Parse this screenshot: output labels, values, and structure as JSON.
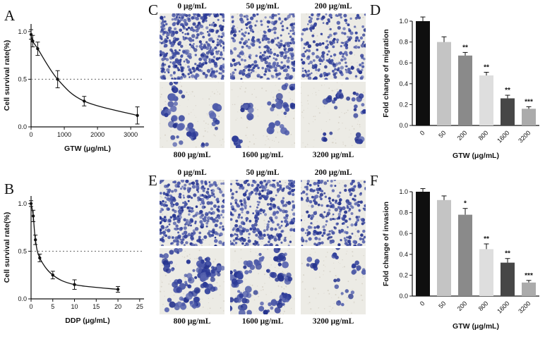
{
  "panels": {
    "A": {
      "label": "A"
    },
    "B": {
      "label": "B"
    },
    "C": {
      "label": "C"
    },
    "D": {
      "label": "D"
    },
    "E": {
      "label": "E"
    },
    "F": {
      "label": "F"
    }
  },
  "chart_data": [
    {
      "id": "A",
      "type": "line",
      "title": "",
      "xlabel": "GTW (μg/mL)",
      "ylabel": "Cell survival rate(%)",
      "xlim": [
        0,
        3400
      ],
      "ylim": [
        0,
        1.08
      ],
      "xticks": [
        0,
        1000,
        2000,
        3000
      ],
      "yticks": [
        0.0,
        0.5,
        1.0
      ],
      "dashed_y": 0.5,
      "x": [
        0,
        50,
        200,
        800,
        1600,
        3200
      ],
      "y": [
        0.97,
        0.9,
        0.82,
        0.5,
        0.27,
        0.12
      ],
      "yerr": [
        0.05,
        0.06,
        0.07,
        0.09,
        0.05,
        0.09
      ],
      "grid": false
    },
    {
      "id": "B",
      "type": "line",
      "title": "",
      "xlabel": "DDP (μg/mL)",
      "ylabel": "Cell survival rate(%)",
      "xlim": [
        0,
        26
      ],
      "ylim": [
        0,
        1.08
      ],
      "xticks": [
        0,
        5,
        10,
        15,
        20,
        25
      ],
      "yticks": [
        0.0,
        0.5,
        1.0
      ],
      "dashed_y": 0.5,
      "x": [
        0,
        0.5,
        1,
        2,
        5,
        10,
        20
      ],
      "y": [
        1.0,
        0.87,
        0.62,
        0.43,
        0.25,
        0.15,
        0.1
      ],
      "yerr": [
        0.03,
        0.06,
        0.05,
        0.04,
        0.04,
        0.05,
        0.03
      ],
      "grid": false
    },
    {
      "id": "D",
      "type": "bar",
      "title": "",
      "xlabel": "GTW (μg/mL)",
      "ylabel": "Fold change of migration",
      "ylim": [
        0,
        1.0
      ],
      "yticks": [
        0.0,
        0.2,
        0.4,
        0.6,
        0.8,
        1.0
      ],
      "categories": [
        "0",
        "50",
        "200",
        "800",
        "1600",
        "3200"
      ],
      "values": [
        1.0,
        0.8,
        0.67,
        0.48,
        0.26,
        0.16
      ],
      "errors": [
        0.04,
        0.05,
        0.03,
        0.03,
        0.03,
        0.02
      ],
      "sig": [
        "",
        "",
        "**",
        "**",
        "**",
        "***"
      ],
      "colors": [
        "#0f0f0f",
        "#c4c4c4",
        "#8a8a8a",
        "#dedede",
        "#474747",
        "#ababab"
      ],
      "grid": false,
      "legend": "none"
    },
    {
      "id": "F",
      "type": "bar",
      "title": "",
      "xlabel": "GTW (μg/mL)",
      "ylabel": "Fold change of invasion",
      "ylim": [
        0,
        1.0
      ],
      "yticks": [
        0.0,
        0.2,
        0.4,
        0.6,
        0.8,
        1.0
      ],
      "categories": [
        "0",
        "50",
        "200",
        "800",
        "1600",
        "3200"
      ],
      "values": [
        1.0,
        0.92,
        0.78,
        0.45,
        0.32,
        0.13
      ],
      "errors": [
        0.03,
        0.04,
        0.06,
        0.05,
        0.04,
        0.02
      ],
      "sig": [
        "",
        "",
        "*",
        "**",
        "**",
        "***"
      ],
      "colors": [
        "#0f0f0f",
        "#c4c4c4",
        "#8a8a8a",
        "#dedede",
        "#474747",
        "#ababab"
      ],
      "grid": false,
      "legend": "none"
    }
  ],
  "micrographs": {
    "C": {
      "panel": "C",
      "assay": "migration",
      "images": [
        {
          "label": "0 μg/mL",
          "dots": 400,
          "min_r": 1.3,
          "max_r": 2.8,
          "clumped": false
        },
        {
          "label": "50 μg/mL",
          "dots": 300,
          "min_r": 1.3,
          "max_r": 2.8,
          "clumped": false
        },
        {
          "label": "200 μg/mL",
          "dots": 230,
          "min_r": 1.3,
          "max_r": 2.8,
          "clumped": false
        },
        {
          "label": "800 μg/mL",
          "dots": 60,
          "min_r": 2.2,
          "max_r": 5.5,
          "clumped": true
        },
        {
          "label": "1600 μg/mL",
          "dots": 50,
          "min_r": 2.2,
          "max_r": 5.5,
          "clumped": true
        },
        {
          "label": "3200 μg/mL",
          "dots": 36,
          "min_r": 2.0,
          "max_r": 4.5,
          "clumped": true
        }
      ]
    },
    "E": {
      "panel": "E",
      "assay": "invasion",
      "images": [
        {
          "label": "0 μg/mL",
          "dots": 340,
          "min_r": 1.3,
          "max_r": 2.8,
          "clumped": false
        },
        {
          "label": "50 μg/mL",
          "dots": 320,
          "min_r": 1.3,
          "max_r": 2.8,
          "clumped": false
        },
        {
          "label": "200 μg/mL",
          "dots": 260,
          "min_r": 1.3,
          "max_r": 2.8,
          "clumped": false
        },
        {
          "label": "800 μg/mL",
          "dots": 120,
          "min_r": 2.0,
          "max_r": 5.0,
          "clumped": true
        },
        {
          "label": "1600 μg/mL",
          "dots": 110,
          "min_r": 2.0,
          "max_r": 5.0,
          "clumped": true
        },
        {
          "label": "3200 μg/mL",
          "dots": 30,
          "min_r": 2.0,
          "max_r": 4.0,
          "clumped": true
        }
      ]
    }
  }
}
